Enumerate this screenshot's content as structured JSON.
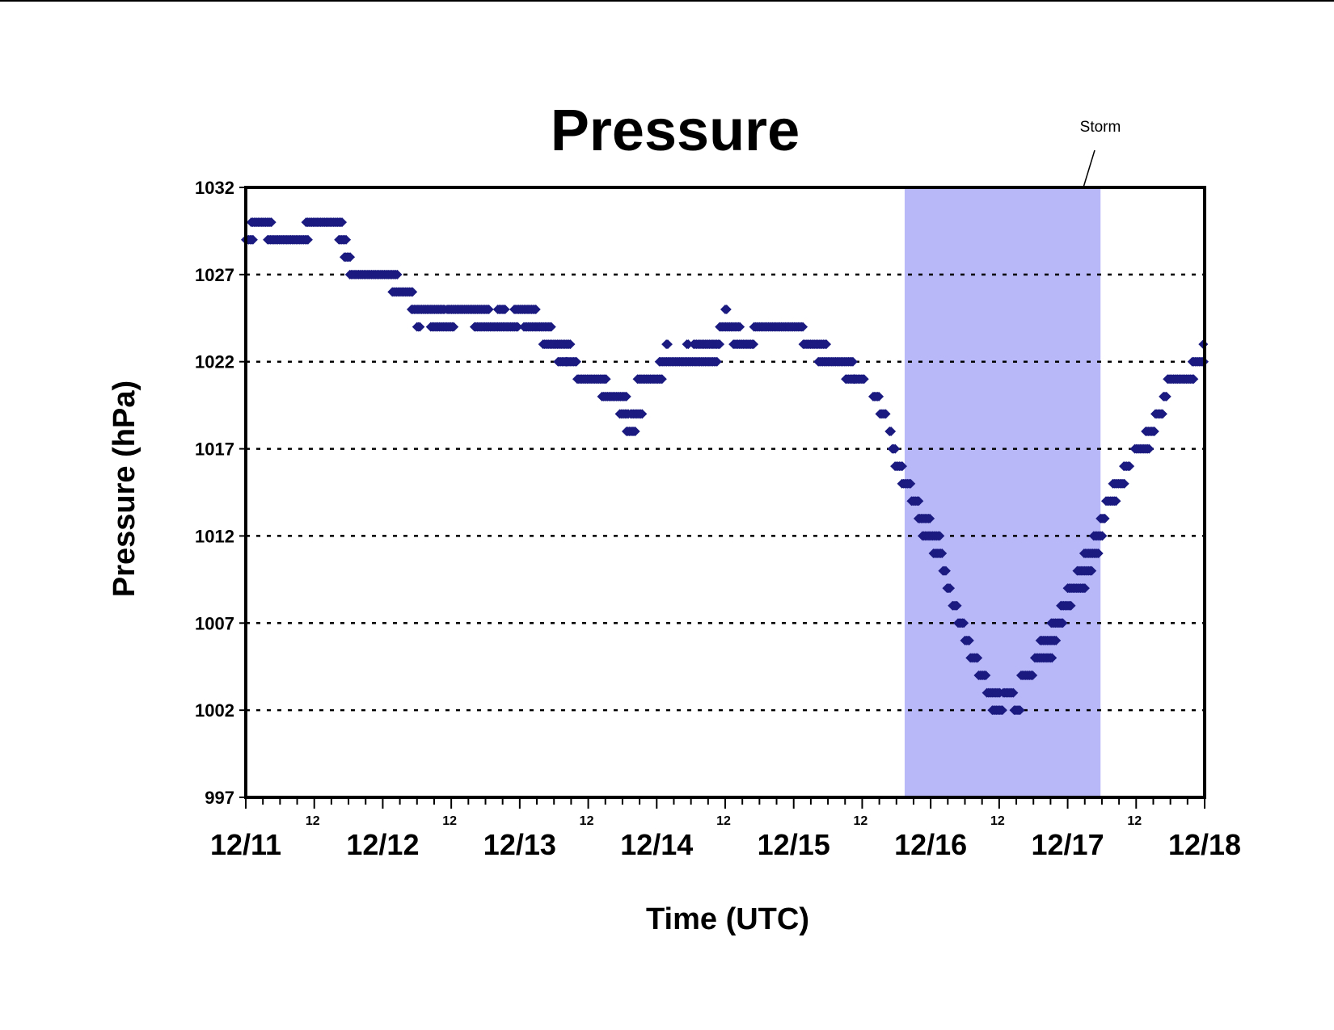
{
  "chart_data": {
    "type": "scatter",
    "title": "Pressure",
    "xlabel": "Time (UTC)",
    "ylabel": "Pressure (hPa)",
    "ylim": [
      997,
      1032
    ],
    "xlim": [
      "12/11 00",
      "12/18 00"
    ],
    "y_ticks": [
      997,
      1002,
      1007,
      1012,
      1017,
      1022,
      1027,
      1032
    ],
    "y_gridlines": [
      1002,
      1007,
      1012,
      1017,
      1022,
      1027
    ],
    "grid": "horizontal dotted",
    "x_major_ticks": [
      {
        "label": "12/11",
        "day": 0
      },
      {
        "label": "12/12",
        "day": 1
      },
      {
        "label": "12/13",
        "day": 2
      },
      {
        "label": "12/14",
        "day": 3
      },
      {
        "label": "12/15",
        "day": 4
      },
      {
        "label": "12/16",
        "day": 5
      },
      {
        "label": "12/17",
        "day": 6
      },
      {
        "label": "12/18",
        "day": 7
      }
    ],
    "x_minor_ticks": [
      {
        "label": "12",
        "day": 0.5
      },
      {
        "label": "12",
        "day": 1.5
      },
      {
        "label": "12",
        "day": 2.5
      },
      {
        "label": "12",
        "day": 3.5
      },
      {
        "label": "12",
        "day": 4.5
      },
      {
        "label": "12",
        "day": 5.5
      },
      {
        "label": "12",
        "day": 6.5
      }
    ],
    "shaded_region": {
      "label": "Storm",
      "start_day": 4.81,
      "end_day": 6.24,
      "color": "#b8b8f8"
    },
    "marker_color": "#1a1a80",
    "segments": [
      [
        0.0,
        0.06,
        1029
      ],
      [
        0.04,
        0.19,
        1030
      ],
      [
        0.16,
        0.46,
        1029
      ],
      [
        0.44,
        0.71,
        1030
      ],
      [
        0.68,
        0.74,
        1029
      ],
      [
        0.72,
        0.77,
        1028
      ],
      [
        0.76,
        1.11,
        1027
      ],
      [
        1.07,
        1.22,
        1026
      ],
      [
        1.21,
        1.46,
        1025
      ],
      [
        1.25,
        1.28,
        1024
      ],
      [
        1.35,
        1.52,
        1024
      ],
      [
        1.47,
        1.78,
        1025
      ],
      [
        1.67,
        1.99,
        1024
      ],
      [
        1.84,
        1.9,
        1025
      ],
      [
        1.96,
        2.12,
        1025
      ],
      [
        2.03,
        2.23,
        1024
      ],
      [
        2.17,
        2.37,
        1023
      ],
      [
        2.28,
        2.35,
        1022
      ],
      [
        2.34,
        2.42,
        1022
      ],
      [
        2.42,
        2.63,
        1021
      ],
      [
        2.6,
        2.78,
        1020
      ],
      [
        2.73,
        2.8,
        1019
      ],
      [
        2.78,
        2.85,
        1018
      ],
      [
        2.81,
        2.9,
        1019
      ],
      [
        2.86,
        3.04,
        1021
      ],
      [
        3.02,
        3.45,
        1022
      ],
      [
        3.07,
        3.09,
        1023
      ],
      [
        3.22,
        3.24,
        1023
      ],
      [
        3.27,
        3.46,
        1023
      ],
      [
        3.46,
        3.61,
        1024
      ],
      [
        3.5,
        3.52,
        1025
      ],
      [
        3.56,
        3.71,
        1023
      ],
      [
        3.71,
        4.07,
        1024
      ],
      [
        4.07,
        4.24,
        1023
      ],
      [
        4.18,
        4.44,
        1022
      ],
      [
        4.38,
        4.45,
        1021
      ],
      [
        4.44,
        4.52,
        1021
      ],
      [
        4.58,
        4.63,
        1020
      ],
      [
        4.63,
        4.68,
        1019
      ],
      [
        4.7,
        4.72,
        1018
      ],
      [
        4.72,
        4.75,
        1017
      ],
      [
        4.74,
        4.8,
        1016
      ],
      [
        4.79,
        4.86,
        1015
      ],
      [
        4.86,
        4.92,
        1014
      ],
      [
        4.91,
        5.0,
        1013
      ],
      [
        4.94,
        5.07,
        1012
      ],
      [
        5.02,
        5.09,
        1011
      ],
      [
        5.09,
        5.12,
        1010
      ],
      [
        5.12,
        5.15,
        1009
      ],
      [
        5.16,
        5.2,
        1008
      ],
      [
        5.2,
        5.25,
        1007
      ],
      [
        5.25,
        5.29,
        1006
      ],
      [
        5.29,
        5.35,
        1005
      ],
      [
        5.35,
        5.41,
        1004
      ],
      [
        5.41,
        5.51,
        1003
      ],
      [
        5.45,
        5.53,
        1002
      ],
      [
        5.53,
        5.61,
        1003
      ],
      [
        5.61,
        5.66,
        1002
      ],
      [
        5.66,
        5.75,
        1004
      ],
      [
        5.76,
        5.89,
        1005
      ],
      [
        5.8,
        5.92,
        1006
      ],
      [
        5.88,
        5.97,
        1007
      ],
      [
        5.95,
        6.03,
        1008
      ],
      [
        6.0,
        6.13,
        1009
      ],
      [
        6.07,
        6.18,
        1010
      ],
      [
        6.12,
        6.23,
        1011
      ],
      [
        6.19,
        6.26,
        1012
      ],
      [
        6.24,
        6.28,
        1013
      ],
      [
        6.28,
        6.36,
        1014
      ],
      [
        6.33,
        6.42,
        1015
      ],
      [
        6.41,
        6.46,
        1016
      ],
      [
        6.49,
        6.6,
        1017
      ],
      [
        6.57,
        6.64,
        1018
      ],
      [
        6.64,
        6.7,
        1019
      ],
      [
        6.7,
        6.73,
        1020
      ],
      [
        6.73,
        6.92,
        1021
      ],
      [
        6.91,
        7.0,
        1022
      ],
      [
        6.99,
        7.0,
        1023
      ]
    ]
  }
}
